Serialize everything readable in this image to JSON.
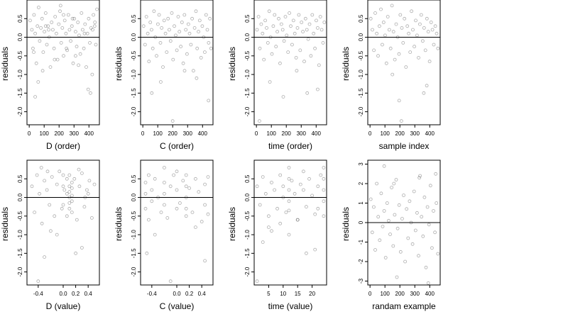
{
  "figure": {
    "background": "#ffffff",
    "point_color": "#000000",
    "point_opacity": 0.32,
    "grid": false,
    "layout": "2 rows x 4 panels"
  },
  "chart_data": [
    {
      "type": "scatter",
      "xlabel": "D (order)",
      "ylabel": "residuals",
      "xlim": [
        -15,
        470
      ],
      "ylim": [
        -2.35,
        1.0
      ],
      "xticks": [
        "0",
        "100",
        "200",
        "300",
        "400"
      ],
      "xtick_values": [
        0,
        100,
        200,
        300,
        400
      ],
      "yticks": [
        "0.5",
        "0.0",
        "-0.5",
        "-1.0",
        "-1.5",
        "-2.0"
      ],
      "ytick_values": [
        0.5,
        0.0,
        -0.5,
        -1.0,
        -1.5,
        -2.0
      ],
      "hline": 0,
      "x": [
        6,
        18,
        25,
        32,
        40,
        48,
        55,
        63,
        70,
        78,
        86,
        94,
        102,
        110,
        118,
        126,
        134,
        142,
        150,
        158,
        166,
        174,
        182,
        190,
        198,
        206,
        214,
        222,
        230,
        238,
        246,
        254,
        262,
        270,
        278,
        286,
        294,
        302,
        310,
        318,
        326,
        334,
        342,
        350,
        358,
        366,
        374,
        382,
        390,
        398,
        406,
        414,
        422,
        430,
        438,
        446,
        454,
        40,
        60,
        90,
        130,
        170,
        210,
        250,
        290,
        330,
        370,
        410,
        440,
        30,
        110,
        230,
        310,
        395,
        425
      ],
      "y": [
        0.45,
        0.2,
        -0.3,
        0.6,
        0.1,
        -0.7,
        0.3,
        0.8,
        -0.1,
        0.25,
        0.5,
        -0.4,
        0.15,
        0.65,
        -0.2,
        0.3,
        0.0,
        -0.8,
        0.4,
        0.2,
        -0.3,
        0.55,
        0.1,
        -0.6,
        0.35,
        0.7,
        -0.15,
        0.25,
        -0.5,
        0.45,
        0.1,
        -0.35,
        0.6,
        0.2,
        -0.1,
        0.3,
        -0.7,
        0.5,
        0.15,
        -0.25,
        0.4,
        0.05,
        -0.45,
        0.65,
        0.2,
        -0.3,
        0.35,
        -0.8,
        0.1,
        0.5,
        -0.15,
        0.25,
        -1.0,
        0.6,
        0.3,
        -0.2,
        0.75,
        -1.6,
        -1.2,
        -0.9,
        0.2,
        -0.6,
        0.85,
        -0.3,
        0.5,
        -0.75,
        0.1,
        -1.5,
        0.4,
        -0.4,
        0.3,
        0.6,
        -0.5,
        -1.4,
        0.2
      ]
    },
    {
      "type": "scatter",
      "xlabel": "C (order)",
      "ylabel": "residuals",
      "xlim": [
        -15,
        470
      ],
      "ylim": [
        -2.35,
        1.0
      ],
      "xticks": [
        "0",
        "100",
        "200",
        "300",
        "400"
      ],
      "xtick_values": [
        0,
        100,
        200,
        300,
        400
      ],
      "yticks": [
        "0.5",
        "0.0",
        "-0.5",
        "-1.0",
        "-1.5",
        "-2.0"
      ],
      "ytick_values": [
        0.5,
        0.0,
        -0.5,
        -1.0,
        -1.5,
        -2.0
      ],
      "hline": 0,
      "x": [
        5,
        15,
        24,
        33,
        41,
        50,
        58,
        67,
        75,
        84,
        92,
        101,
        109,
        118,
        126,
        135,
        143,
        152,
        160,
        169,
        177,
        186,
        194,
        203,
        211,
        220,
        228,
        237,
        245,
        254,
        262,
        271,
        279,
        288,
        296,
        305,
        313,
        322,
        330,
        339,
        347,
        356,
        364,
        373,
        381,
        390,
        398,
        407,
        415,
        424,
        432,
        441,
        449,
        457,
        60,
        120,
        200,
        280,
        360,
        440
      ],
      "y": [
        0.3,
        -0.2,
        0.55,
        0.1,
        -0.65,
        0.4,
        0.2,
        -0.3,
        0.7,
        0.0,
        -0.5,
        0.35,
        0.6,
        -0.15,
        0.25,
        -0.8,
        0.45,
        0.1,
        -0.4,
        0.5,
        0.2,
        -0.1,
        0.65,
        -0.6,
        0.3,
        0.05,
        -0.35,
        0.55,
        0.15,
        -0.25,
        0.4,
        -0.7,
        0.6,
        0.2,
        -0.45,
        0.35,
        0.1,
        -0.2,
        0.5,
        -0.9,
        0.25,
        0.7,
        -0.3,
        0.15,
        0.45,
        -0.55,
        0.3,
        0.0,
        -0.4,
        0.6,
        0.2,
        -0.15,
        0.5,
        -0.3,
        -1.5,
        -1.2,
        -2.25,
        -0.9,
        -1.1,
        -1.7
      ]
    },
    {
      "type": "scatter",
      "xlabel": "time (order)",
      "ylabel": "residuals",
      "xlim": [
        -15,
        470
      ],
      "ylim": [
        -2.35,
        1.0
      ],
      "xticks": [
        "0",
        "100",
        "200",
        "300",
        "400"
      ],
      "xtick_values": [
        0,
        100,
        200,
        300,
        400
      ],
      "yticks": [
        "0.5",
        "0.0",
        "-0.5",
        "-1.0",
        "-1.5",
        "-2.0"
      ],
      "ytick_values": [
        0.5,
        0.0,
        -0.5,
        -1.0,
        -1.5,
        -2.0
      ],
      "hline": 0,
      "x": [
        4,
        14,
        23,
        32,
        41,
        50,
        59,
        68,
        77,
        86,
        95,
        104,
        113,
        122,
        131,
        140,
        149,
        158,
        167,
        176,
        185,
        194,
        203,
        212,
        221,
        230,
        239,
        248,
        257,
        266,
        275,
        284,
        293,
        302,
        311,
        320,
        329,
        338,
        347,
        356,
        365,
        374,
        383,
        392,
        401,
        410,
        419,
        428,
        437,
        446,
        455,
        20,
        90,
        180,
        270,
        340,
        410
      ],
      "y": [
        0.2,
        0.55,
        -0.3,
        0.35,
        0.1,
        -0.6,
        0.45,
        0.25,
        -0.15,
        0.7,
        0.0,
        -0.45,
        0.3,
        0.6,
        -0.25,
        0.15,
        0.5,
        -0.7,
        0.35,
        0.2,
        -0.1,
        0.55,
        0.05,
        -0.4,
        0.65,
        0.3,
        -0.2,
        0.45,
        0.1,
        -0.55,
        0.25,
        0.6,
        -0.35,
        0.4,
        0.15,
        -0.65,
        0.5,
        0.2,
        -0.05,
        0.35,
        -0.5,
        0.6,
        0.1,
        -0.3,
        0.45,
        0.25,
        -0.75,
        0.55,
        0.2,
        -0.15,
        0.4,
        -2.25,
        -1.2,
        -1.6,
        -0.9,
        -1.5,
        -1.4
      ]
    },
    {
      "type": "scatter",
      "xlabel": "sample index",
      "ylabel": "residuals",
      "xlim": [
        -15,
        470
      ],
      "ylim": [
        -2.35,
        1.0
      ],
      "xticks": [
        "0",
        "100",
        "200",
        "300",
        "400"
      ],
      "xtick_values": [
        0,
        100,
        200,
        300,
        400
      ],
      "yticks": [
        "0.5",
        "0.0",
        "-0.5",
        "-1.0",
        "-1.5",
        "-2.0"
      ],
      "ytick_values": [
        0.5,
        0.0,
        -0.5,
        -1.0,
        -1.5,
        -2.0
      ],
      "hline": 0,
      "x": [
        5,
        16,
        26,
        35,
        45,
        54,
        63,
        73,
        82,
        91,
        101,
        110,
        119,
        129,
        138,
        147,
        157,
        166,
        175,
        185,
        194,
        203,
        213,
        222,
        231,
        241,
        250,
        259,
        269,
        278,
        287,
        297,
        306,
        315,
        325,
        334,
        343,
        353,
        362,
        371,
        381,
        390,
        399,
        409,
        418,
        427,
        437,
        446,
        455,
        150,
        195,
        210,
        360,
        380
      ],
      "y": [
        0.5,
        0.2,
        -0.35,
        0.65,
        0.1,
        -0.5,
        0.3,
        0.75,
        -0.2,
        0.4,
        0.05,
        -0.7,
        0.55,
        0.2,
        -0.3,
        0.85,
        0.15,
        -0.6,
        0.35,
        0.0,
        -0.45,
        0.6,
        0.25,
        -0.15,
        0.5,
        -0.8,
        0.3,
        0.1,
        -0.4,
        0.7,
        0.2,
        -0.25,
        0.45,
        0.05,
        -0.55,
        0.35,
        0.6,
        -0.1,
        0.25,
        -0.35,
        0.5,
        0.15,
        -0.65,
        0.4,
        0.2,
        -0.2,
        0.3,
        0.1,
        -0.3,
        -1.0,
        -1.7,
        -2.25,
        -1.5,
        -1.3
      ]
    },
    {
      "type": "scatter",
      "xlabel": "D (value)",
      "ylabel": "residuals",
      "xlim": [
        -0.58,
        0.58
      ],
      "ylim": [
        -2.35,
        1.0
      ],
      "xticks": [
        "-0.4",
        "0.0",
        "0.2",
        "0.4"
      ],
      "xtick_values": [
        -0.4,
        0.0,
        0.2,
        0.4
      ],
      "yticks": [
        "0.5",
        "0.0",
        "-0.5",
        "-1.0",
        "-1.5",
        "-2.0"
      ],
      "ytick_values": [
        0.5,
        0.0,
        -0.5,
        -1.0,
        -1.5,
        -2.0
      ],
      "hline": 0,
      "x": [
        -0.5,
        -0.46,
        -0.42,
        -0.38,
        -0.34,
        -0.3,
        -0.26,
        -0.22,
        -0.18,
        -0.14,
        -0.1,
        -0.06,
        -0.02,
        0.02,
        0.06,
        0.1,
        0.1,
        0.1,
        0.1,
        0.1,
        0.1,
        0.14,
        0.14,
        0.14,
        0.14,
        0.14,
        0.18,
        0.22,
        0.26,
        0.3,
        0.34,
        0.38,
        0.42,
        0.46,
        0.5,
        -0.4,
        -0.3,
        -0.2,
        -0.1,
        0.0,
        0.0,
        0.0,
        0.06,
        0.06,
        0.2,
        0.3,
        0.4,
        -0.35,
        -0.25,
        0.25,
        0.35
      ],
      "y": [
        0.3,
        -0.4,
        0.6,
        0.1,
        -0.7,
        0.45,
        0.2,
        -0.2,
        0.55,
        -0.5,
        0.35,
        0.7,
        -0.3,
        0.2,
        0.5,
        0.6,
        0.3,
        0.0,
        -0.3,
        -0.15,
        0.15,
        0.4,
        -0.1,
        0.25,
        -0.4,
        0.05,
        0.5,
        -0.6,
        0.3,
        0.65,
        -0.25,
        0.2,
        0.45,
        -0.55,
        0.35,
        -2.25,
        -1.6,
        -0.9,
        -1.0,
        0.3,
        -0.2,
        0.6,
        0.1,
        -0.5,
        -1.5,
        -1.35,
        0.1,
        0.8,
        0.7,
        0.75,
        0.0
      ]
    },
    {
      "type": "scatter",
      "xlabel": "C (value)",
      "ylabel": "residuals",
      "xlim": [
        -0.58,
        0.58
      ],
      "ylim": [
        -2.35,
        1.0
      ],
      "xticks": [
        "-0.4",
        "0.0",
        "0.2",
        "0.4"
      ],
      "xtick_values": [
        -0.4,
        0.0,
        0.2,
        0.4
      ],
      "yticks": [
        "0.5",
        "0.0",
        "-0.5",
        "-1.0",
        "-1.5",
        "-2.0"
      ],
      "ytick_values": [
        0.5,
        0.0,
        -0.5,
        -1.0,
        -1.5,
        -2.0
      ],
      "hline": 0,
      "x": [
        -0.5,
        -0.5,
        -0.5,
        -0.45,
        -0.45,
        -0.4,
        -0.4,
        -0.35,
        -0.3,
        -0.25,
        -0.2,
        -0.2,
        -0.2,
        -0.2,
        -0.15,
        -0.1,
        -0.05,
        0.0,
        0.0,
        0.0,
        0.05,
        0.1,
        0.15,
        0.15,
        0.15,
        0.15,
        0.15,
        0.2,
        0.25,
        0.3,
        0.35,
        0.4,
        0.45,
        0.45,
        0.5,
        0.5,
        -0.35,
        -0.1,
        0.3,
        0.45,
        -0.48
      ],
      "y": [
        0.4,
        -0.3,
        0.1,
        0.6,
        -0.6,
        0.2,
        -0.1,
        0.5,
        0.0,
        -0.4,
        0.8,
        0.4,
        -0.2,
        0.1,
        -0.55,
        0.3,
        0.6,
        0.2,
        -0.3,
        0.7,
        -0.15,
        0.45,
        0.6,
        0.3,
        0.0,
        -0.3,
        -0.5,
        0.25,
        -0.4,
        0.5,
        0.15,
        -0.65,
        0.35,
        -0.2,
        0.55,
        -0.45,
        -1.0,
        -2.25,
        -0.8,
        -1.7,
        -1.5
      ]
    },
    {
      "type": "scatter",
      "xlabel": "time (value)",
      "ylabel": "residuals",
      "xlim": [
        0,
        25
      ],
      "ylim": [
        -2.35,
        1.0
      ],
      "xticks": [
        "5",
        "10",
        "15",
        "20"
      ],
      "xtick_values": [
        5,
        10,
        15,
        20
      ],
      "yticks": [
        "0.5",
        "0.0",
        "-0.5",
        "-1.0",
        "-1.5",
        "-2.0"
      ],
      "ytick_values": [
        0.5,
        0.0,
        -0.5,
        -1.0,
        -1.5,
        -2.0
      ],
      "hline": 0,
      "x": [
        1,
        2,
        3,
        4,
        5,
        6,
        7,
        8,
        9,
        10,
        11,
        12,
        12,
        12,
        12,
        12,
        13,
        14,
        15,
        16,
        17,
        18,
        19,
        20,
        21,
        22,
        23,
        24,
        24,
        24,
        24,
        24,
        3,
        6,
        9,
        12,
        15,
        18,
        21,
        1,
        5,
        10,
        17,
        22
      ],
      "y": [
        0.3,
        -0.2,
        0.55,
        0.1,
        -0.5,
        0.4,
        0.2,
        -0.3,
        0.6,
        0.0,
        -0.4,
        0.8,
        0.5,
        0.2,
        -0.1,
        -0.35,
        0.45,
        0.1,
        -0.6,
        0.35,
        0.2,
        -0.25,
        0.5,
        0.05,
        -0.45,
        0.3,
        0.6,
        0.8,
        0.5,
        0.2,
        -0.1,
        -0.5,
        -1.2,
        -0.9,
        -0.7,
        -1.0,
        -0.6,
        -1.5,
        -1.4,
        -2.25,
        -0.8,
        0.3,
        0.7,
        -0.3
      ]
    },
    {
      "type": "scatter",
      "xlabel": "randam example",
      "ylabel": "residuals",
      "xlim": [
        -15,
        470
      ],
      "ylim": [
        -3.2,
        3.2
      ],
      "xticks": [
        "0",
        "100",
        "200",
        "300",
        "400"
      ],
      "xtick_values": [
        0,
        100,
        200,
        300,
        400
      ],
      "yticks": [
        "3",
        "2",
        "1",
        "0",
        "-1",
        "-2",
        "-3"
      ],
      "ytick_values": [
        3,
        2,
        1,
        0,
        -1,
        -2,
        -3
      ],
      "hline": 0,
      "x": [
        5,
        15,
        25,
        35,
        45,
        55,
        65,
        75,
        85,
        95,
        105,
        115,
        125,
        135,
        145,
        155,
        165,
        175,
        185,
        195,
        205,
        215,
        225,
        235,
        245,
        255,
        265,
        275,
        285,
        295,
        305,
        315,
        325,
        335,
        345,
        355,
        365,
        375,
        385,
        395,
        405,
        415,
        425,
        435,
        445,
        455,
        95,
        180,
        330,
        390,
        160,
        440
      ],
      "y": [
        1.2,
        -0.5,
        0.8,
        -1.4,
        2.0,
        0.3,
        -0.9,
        1.5,
        -0.2,
        0.6,
        -1.8,
        1.0,
        0.1,
        -0.6,
        1.8,
        -1.2,
        0.4,
        2.2,
        -0.3,
        0.9,
        -1.5,
        0.2,
        1.4,
        -2.0,
        0.7,
        -0.8,
        1.1,
        0.0,
        -1.1,
        1.6,
        -0.4,
        0.5,
        -1.7,
        2.4,
        0.3,
        -0.7,
        1.3,
        -2.3,
        0.8,
        -0.1,
        1.9,
        -1.3,
        0.6,
        -0.5,
        1.0,
        -1.6,
        2.9,
        -2.8,
        2.3,
        -3.1,
        2.0,
        2.5
      ]
    }
  ]
}
